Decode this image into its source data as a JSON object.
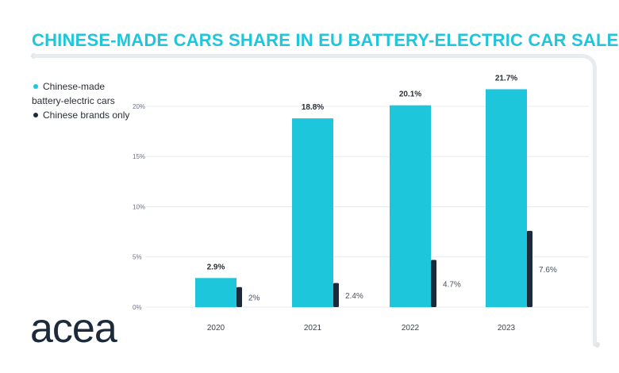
{
  "chart_data": {
    "type": "bar",
    "title": "CHINESE-MADE CARS SHARE IN EU BATTERY-ELECTRIC CAR SALES",
    "categories": [
      "2020",
      "2021",
      "2022",
      "2023"
    ],
    "series": [
      {
        "name": "Chinese-made battery-electric cars",
        "values": [
          2.9,
          18.8,
          20.1,
          21.7
        ],
        "labels": [
          "2.9%",
          "18.8%",
          "20.1%",
          "21.7%"
        ],
        "color": "#1ec6dc"
      },
      {
        "name": "Chinese brands only",
        "values": [
          2,
          2.4,
          4.7,
          7.6
        ],
        "labels": [
          "2%",
          "2.4%",
          "4.7%",
          "7.6%"
        ],
        "color": "#1c2a3a"
      }
    ],
    "yticks": [
      0,
      5,
      10,
      15,
      20
    ],
    "ytick_labels": [
      "0%",
      "5%",
      "10%",
      "15%",
      "20%"
    ],
    "ylim": [
      0,
      23
    ],
    "xlabel": "",
    "ylabel": "",
    "grid": true,
    "legend": "top-left"
  },
  "brand": {
    "logo_text": "acea"
  }
}
